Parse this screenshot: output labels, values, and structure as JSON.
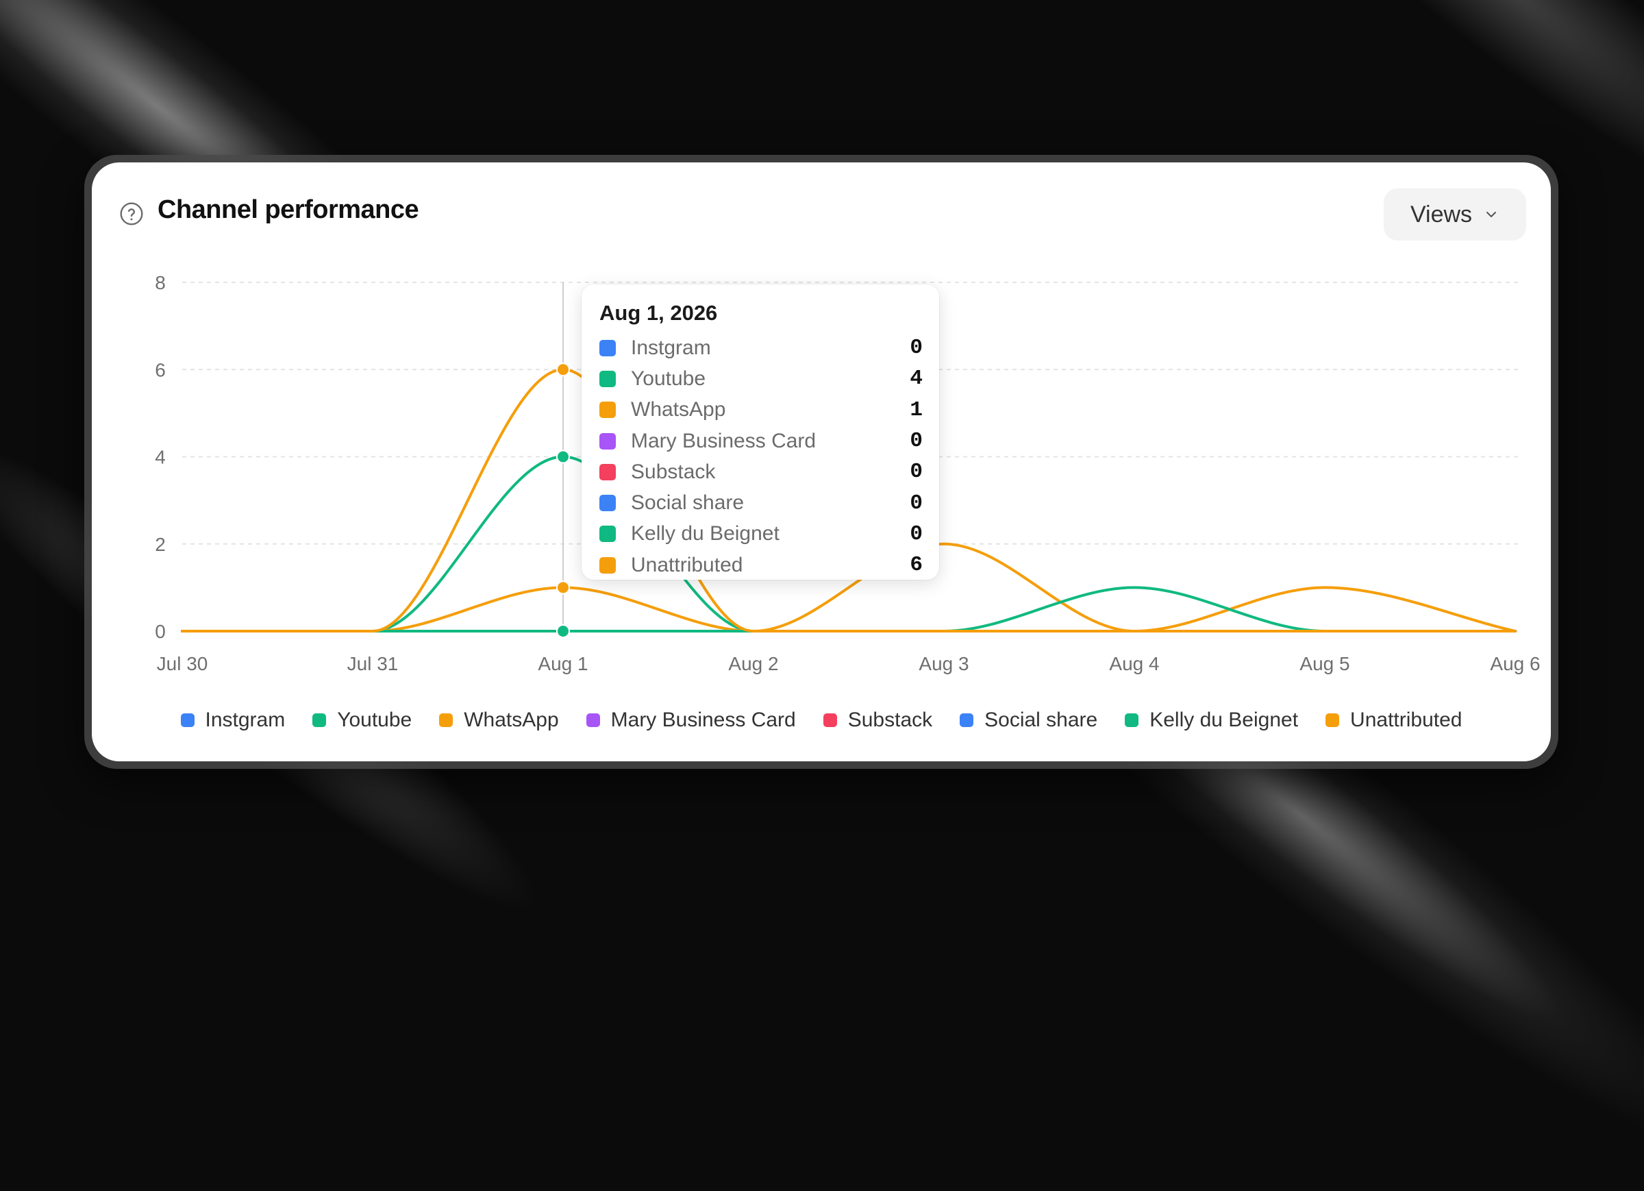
{
  "widget": {
    "title": "Channel performance",
    "metric_selector": {
      "selected": "Views",
      "icon": "chevron-down-icon"
    },
    "help_icon": "question-circle-icon"
  },
  "tooltip": {
    "date": "Aug 1, 2026",
    "rows": [
      {
        "name": "Instgram",
        "value": "0",
        "color": "#3b82f6"
      },
      {
        "name": "Youtube",
        "value": "4",
        "color": "#10b981"
      },
      {
        "name": "WhatsApp",
        "value": "1",
        "color": "#f59e0b"
      },
      {
        "name": "Mary Business Card",
        "value": "0",
        "color": "#a855f7"
      },
      {
        "name": "Substack",
        "value": "0",
        "color": "#f43f5e"
      },
      {
        "name": "Social share",
        "value": "0",
        "color": "#3b82f6"
      },
      {
        "name": "Kelly du Beignet",
        "value": "0",
        "color": "#10b981"
      },
      {
        "name": "Unattributed",
        "value": "6",
        "color": "#f59e0b"
      }
    ]
  },
  "chart_data": {
    "type": "line",
    "title": "Channel performance",
    "x": [
      "Jul 30",
      "Jul 31",
      "Aug 1",
      "Aug 2",
      "Aug 3",
      "Aug 4",
      "Aug 5",
      "Aug 6"
    ],
    "ylim": [
      0,
      8
    ],
    "yticks": [
      0,
      2,
      4,
      6,
      8
    ],
    "grid": true,
    "legend_position": "bottom",
    "highlight_index": 2,
    "series": [
      {
        "name": "Instgram",
        "color": "#3b82f6",
        "values": [
          0,
          0,
          0,
          0,
          0,
          0,
          0,
          0
        ]
      },
      {
        "name": "Youtube",
        "color": "#10b981",
        "values": [
          0,
          0,
          4,
          0,
          0,
          0,
          0,
          0
        ]
      },
      {
        "name": "WhatsApp",
        "color": "#f59e0b",
        "values": [
          0,
          0,
          1,
          0,
          2,
          0,
          1,
          0
        ]
      },
      {
        "name": "Mary Business Card",
        "color": "#a855f7",
        "values": [
          0,
          0,
          0,
          0,
          0,
          0,
          0,
          0
        ]
      },
      {
        "name": "Substack",
        "color": "#f43f5e",
        "values": [
          0,
          0,
          0,
          0,
          0,
          0,
          0,
          0
        ]
      },
      {
        "name": "Social share",
        "color": "#3b82f6",
        "values": [
          0,
          0,
          0,
          0,
          0,
          0,
          0,
          0
        ]
      },
      {
        "name": "Kelly du Beignet",
        "color": "#10b981",
        "values": [
          0,
          0,
          0,
          0,
          0,
          1,
          0,
          0
        ]
      },
      {
        "name": "Unattributed",
        "color": "#f59e0b",
        "values": [
          0,
          0,
          6,
          0,
          0,
          0,
          0,
          0
        ]
      }
    ]
  }
}
